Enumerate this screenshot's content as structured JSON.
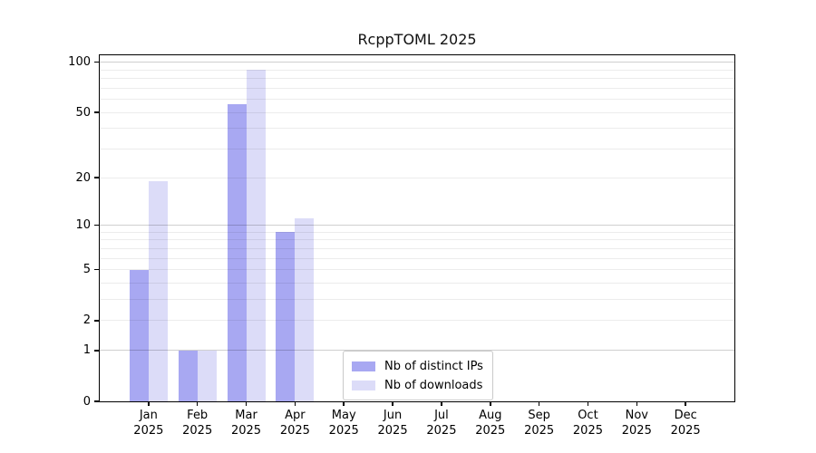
{
  "chart_data": {
    "type": "bar",
    "title": "RcppTOML 2025",
    "categories": [
      "Jan",
      "Feb",
      "Mar",
      "Apr",
      "May",
      "Jun",
      "Jul",
      "Aug",
      "Sep",
      "Oct",
      "Nov",
      "Dec"
    ],
    "year_label": "2025",
    "series": [
      {
        "name": "Nb of distinct IPs",
        "color": "#a8a8f2",
        "values": [
          5,
          1,
          56,
          9,
          0,
          0,
          0,
          0,
          0,
          0,
          0,
          0
        ]
      },
      {
        "name": "Nb of downloads",
        "color": "#dcdcf8",
        "values": [
          19,
          1,
          90,
          11,
          0,
          0,
          0,
          0,
          0,
          0,
          0,
          0
        ]
      }
    ],
    "yticks": [
      0,
      1,
      2,
      5,
      10,
      20,
      50,
      100
    ],
    "gridline_values": [
      1,
      2,
      3,
      4,
      5,
      6,
      7,
      8,
      9,
      10,
      20,
      30,
      40,
      50,
      60,
      70,
      80,
      90,
      100
    ],
    "major_gridlines": [
      1,
      10,
      100
    ],
    "yscale": "log1p",
    "ylim": [
      0,
      110
    ],
    "grid": true,
    "legend": {
      "position": "inside-bottom-center"
    }
  }
}
